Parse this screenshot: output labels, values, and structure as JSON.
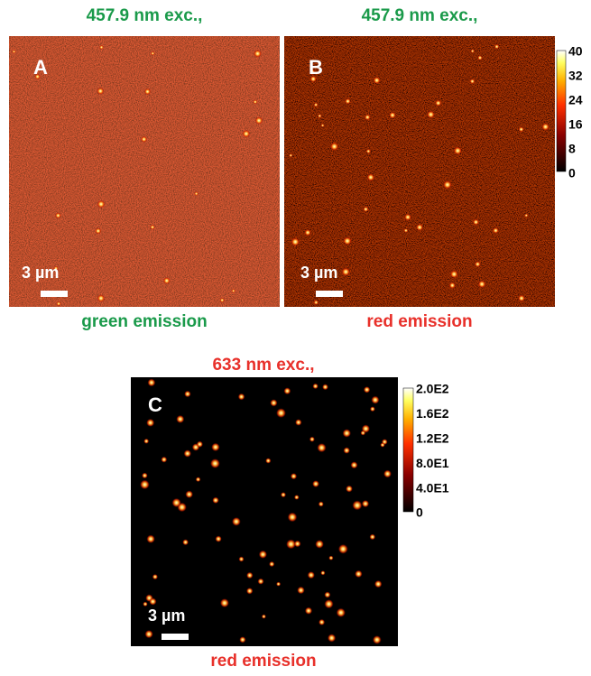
{
  "panels": [
    {
      "title": "457.9 nm exc.,",
      "label": "A",
      "scale_bar": "3 µm",
      "caption": "green emission"
    },
    {
      "title": "457.9 nm exc.,",
      "label": "B",
      "scale_bar": "3 µm",
      "caption": "red emission"
    },
    {
      "title": "633 nm exc.,",
      "label": "C",
      "scale_bar": "3 µm",
      "caption": "red emission"
    }
  ],
  "colorbars": [
    {
      "ticks": [
        "40",
        "32",
        "24",
        "16",
        "8",
        "0"
      ]
    },
    {
      "ticks": [
        "2.0E2",
        "1.6E2",
        "1.2E2",
        "8.0E1",
        "4.0E1",
        "0"
      ]
    }
  ]
}
